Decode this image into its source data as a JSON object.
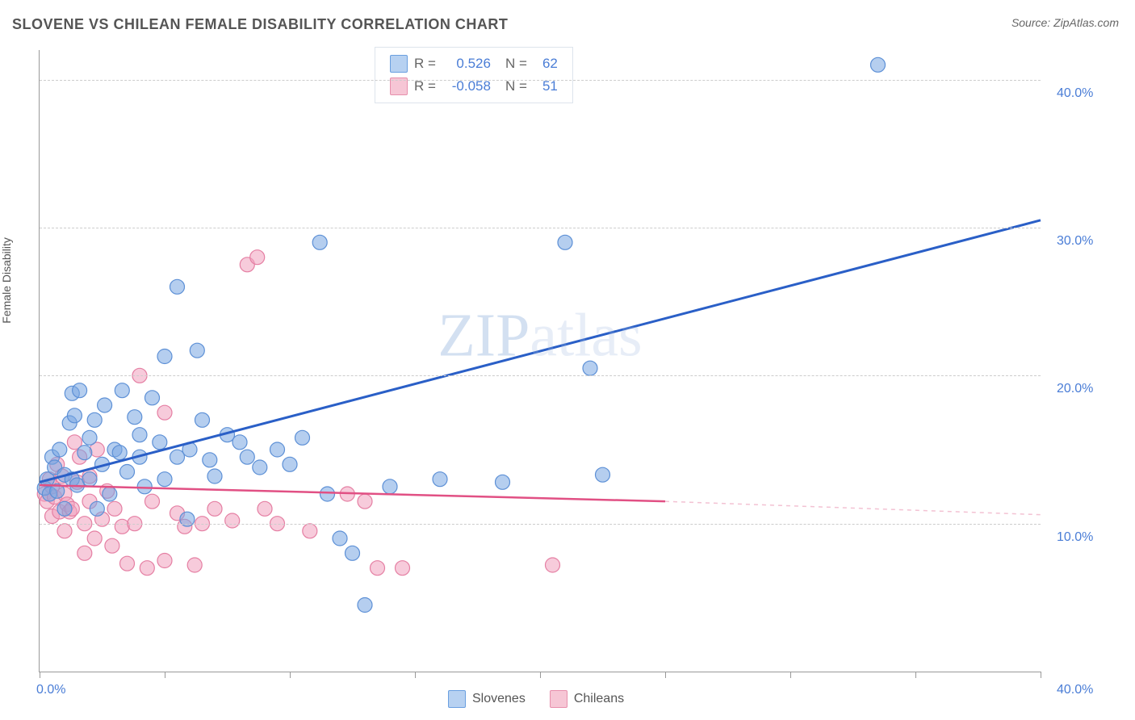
{
  "title": "SLOVENE VS CHILEAN FEMALE DISABILITY CORRELATION CHART",
  "source": "Source: ZipAtlas.com",
  "yaxis_label": "Female Disability",
  "watermark": {
    "text_bold": "ZIP",
    "text_rest": "atlas"
  },
  "chart": {
    "type": "scatter",
    "background_color": "#ffffff",
    "grid_color": "#cccccc",
    "axis_color": "#999999",
    "xlim": [
      0,
      40
    ],
    "ylim": [
      0,
      42
    ],
    "x_ticks": [
      0,
      5,
      10,
      15,
      20,
      25,
      30,
      35,
      40
    ],
    "x_tick_labels": {
      "0": "0.0%",
      "40": "40.0%"
    },
    "y_ticks": [
      10,
      20,
      30,
      40
    ],
    "y_tick_labels": {
      "10": "10.0%",
      "20": "20.0%",
      "30": "30.0%",
      "40": "40.0%"
    },
    "stats": [
      {
        "series": "slovenes",
        "swatch_fill": "#b7d1f1",
        "swatch_border": "#6a9fe0",
        "R_label": "R =",
        "R": "0.526",
        "N_label": "N =",
        "N": "62"
      },
      {
        "series": "chileans",
        "swatch_fill": "#f6c6d5",
        "swatch_border": "#e78fac",
        "R_label": "R =",
        "R": "-0.058",
        "N_label": "N =",
        "N": "51"
      }
    ],
    "legend_bottom": [
      {
        "label": "Slovenes",
        "fill": "#b7d1f1",
        "border": "#6a9fe0"
      },
      {
        "label": "Chileans",
        "fill": "#f6c6d5",
        "border": "#e78fac"
      }
    ],
    "series": {
      "slovenes": {
        "color_fill": "rgba(120,165,225,0.55)",
        "color_stroke": "#5d90d6",
        "marker_radius": 9,
        "trend": {
          "color": "#2a5fc7",
          "width": 3,
          "x1": 0,
          "y1": 12.8,
          "x2": 40,
          "y2": 30.5,
          "dash_beyond_x": 40
        },
        "points": [
          [
            0.2,
            12.4
          ],
          [
            0.3,
            13.0
          ],
          [
            0.4,
            12.0
          ],
          [
            0.5,
            14.5
          ],
          [
            0.6,
            13.8
          ],
          [
            0.7,
            12.2
          ],
          [
            0.8,
            15.0
          ],
          [
            1.0,
            13.3
          ],
          [
            1.0,
            11.0
          ],
          [
            1.2,
            16.8
          ],
          [
            1.3,
            13.0
          ],
          [
            1.3,
            18.8
          ],
          [
            1.4,
            17.3
          ],
          [
            1.5,
            12.6
          ],
          [
            1.6,
            19.0
          ],
          [
            1.8,
            14.8
          ],
          [
            2.0,
            15.8
          ],
          [
            2.0,
            13.0
          ],
          [
            2.2,
            17.0
          ],
          [
            2.3,
            11.0
          ],
          [
            2.5,
            14.0
          ],
          [
            2.6,
            18.0
          ],
          [
            2.8,
            12.0
          ],
          [
            3.0,
            15.0
          ],
          [
            3.2,
            14.8
          ],
          [
            3.3,
            19.0
          ],
          [
            3.5,
            13.5
          ],
          [
            3.8,
            17.2
          ],
          [
            4.0,
            16.0
          ],
          [
            4.0,
            14.5
          ],
          [
            4.2,
            12.5
          ],
          [
            4.5,
            18.5
          ],
          [
            4.8,
            15.5
          ],
          [
            5.0,
            13.0
          ],
          [
            5.0,
            21.3
          ],
          [
            5.5,
            26.0
          ],
          [
            5.5,
            14.5
          ],
          [
            5.9,
            10.3
          ],
          [
            6.0,
            15.0
          ],
          [
            6.3,
            21.7
          ],
          [
            6.5,
            17.0
          ],
          [
            6.8,
            14.3
          ],
          [
            7.0,
            13.2
          ],
          [
            7.5,
            16.0
          ],
          [
            8.0,
            15.5
          ],
          [
            8.3,
            14.5
          ],
          [
            8.8,
            13.8
          ],
          [
            9.5,
            15.0
          ],
          [
            10.0,
            14.0
          ],
          [
            10.5,
            15.8
          ],
          [
            11.2,
            29.0
          ],
          [
            11.5,
            12.0
          ],
          [
            12.0,
            9.0
          ],
          [
            12.5,
            8.0
          ],
          [
            13.0,
            4.5
          ],
          [
            14.0,
            12.5
          ],
          [
            16.0,
            13.0
          ],
          [
            18.5,
            12.8
          ],
          [
            21.0,
            29.0
          ],
          [
            22.0,
            20.5
          ],
          [
            22.5,
            13.3
          ],
          [
            33.5,
            41.0
          ]
        ]
      },
      "chileans": {
        "color_fill": "rgba(240,160,190,0.55)",
        "color_stroke": "#e57fa3",
        "marker_radius": 9,
        "trend": {
          "color": "#e15084",
          "width": 2.5,
          "x1": 0,
          "y1": 12.6,
          "x2": 25,
          "y2": 11.5,
          "dash_color": "#f3c2d3",
          "x2_dash": 40,
          "y2_dash": 10.6
        },
        "points": [
          [
            0.2,
            12.0
          ],
          [
            0.3,
            11.5
          ],
          [
            0.4,
            13.0
          ],
          [
            0.5,
            10.5
          ],
          [
            0.5,
            12.5
          ],
          [
            0.6,
            11.8
          ],
          [
            0.7,
            14.0
          ],
          [
            0.8,
            10.8
          ],
          [
            0.9,
            13.2
          ],
          [
            1.0,
            12.0
          ],
          [
            1.0,
            9.5
          ],
          [
            1.1,
            11.3
          ],
          [
            1.2,
            10.8
          ],
          [
            1.3,
            11.0
          ],
          [
            1.4,
            15.5
          ],
          [
            1.5,
            12.8
          ],
          [
            1.6,
            14.5
          ],
          [
            1.8,
            10.0
          ],
          [
            1.8,
            8.0
          ],
          [
            2.0,
            11.5
          ],
          [
            2.0,
            13.2
          ],
          [
            2.2,
            9.0
          ],
          [
            2.3,
            15.0
          ],
          [
            2.5,
            10.3
          ],
          [
            2.7,
            12.2
          ],
          [
            2.9,
            8.5
          ],
          [
            3.0,
            11.0
          ],
          [
            3.3,
            9.8
          ],
          [
            3.5,
            7.3
          ],
          [
            3.8,
            10.0
          ],
          [
            4.0,
            20.0
          ],
          [
            4.3,
            7.0
          ],
          [
            4.5,
            11.5
          ],
          [
            5.0,
            17.5
          ],
          [
            5.0,
            7.5
          ],
          [
            5.5,
            10.7
          ],
          [
            5.8,
            9.8
          ],
          [
            6.2,
            7.2
          ],
          [
            6.5,
            10.0
          ],
          [
            7.0,
            11.0
          ],
          [
            7.7,
            10.2
          ],
          [
            8.3,
            27.5
          ],
          [
            8.7,
            28.0
          ],
          [
            9.0,
            11.0
          ],
          [
            9.5,
            10.0
          ],
          [
            10.8,
            9.5
          ],
          [
            12.3,
            12.0
          ],
          [
            13.0,
            11.5
          ],
          [
            13.5,
            7.0
          ],
          [
            14.5,
            7.0
          ],
          [
            20.5,
            7.2
          ]
        ]
      }
    }
  }
}
